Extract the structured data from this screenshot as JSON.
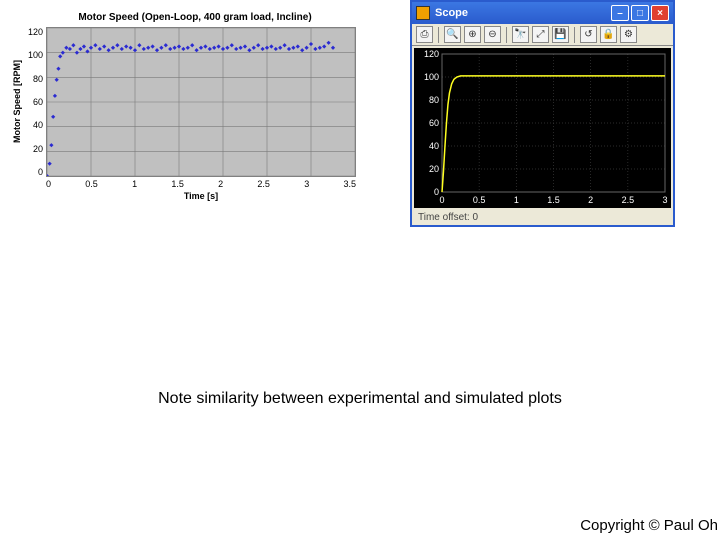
{
  "left_chart": {
    "type": "scatter",
    "title": "Motor Speed (Open-Loop, 400 gram load, Incline)",
    "ylabel": "Motor Speed [RPM]",
    "xlabel": "Time [s]",
    "xlim": [
      0,
      3.5
    ],
    "ylim": [
      0,
      120
    ],
    "xticks": [
      0,
      0.5,
      1,
      1.5,
      2,
      2.5,
      3,
      3.5
    ],
    "yticks": [
      0,
      20,
      40,
      60,
      80,
      100,
      120
    ],
    "marker_color": "#2b2bd1",
    "marker_size": 3,
    "background_color": "#c0c0c0",
    "grid_color": "#7a7a7a",
    "data": [
      [
        0.0,
        0
      ],
      [
        0.03,
        10
      ],
      [
        0.05,
        25
      ],
      [
        0.07,
        48
      ],
      [
        0.09,
        65
      ],
      [
        0.11,
        78
      ],
      [
        0.13,
        87
      ],
      [
        0.15,
        97
      ],
      [
        0.18,
        100
      ],
      [
        0.22,
        104
      ],
      [
        0.26,
        103
      ],
      [
        0.3,
        106
      ],
      [
        0.34,
        100
      ],
      [
        0.38,
        103
      ],
      [
        0.42,
        105
      ],
      [
        0.46,
        101
      ],
      [
        0.5,
        104
      ],
      [
        0.55,
        106
      ],
      [
        0.6,
        103
      ],
      [
        0.65,
        105
      ],
      [
        0.7,
        102
      ],
      [
        0.75,
        104
      ],
      [
        0.8,
        106
      ],
      [
        0.85,
        103
      ],
      [
        0.9,
        105
      ],
      [
        0.95,
        104
      ],
      [
        1.0,
        102
      ],
      [
        1.05,
        106
      ],
      [
        1.1,
        103
      ],
      [
        1.15,
        104
      ],
      [
        1.2,
        105
      ],
      [
        1.25,
        102
      ],
      [
        1.3,
        104
      ],
      [
        1.35,
        106
      ],
      [
        1.4,
        103
      ],
      [
        1.45,
        104
      ],
      [
        1.5,
        105
      ],
      [
        1.55,
        103
      ],
      [
        1.6,
        104
      ],
      [
        1.65,
        106
      ],
      [
        1.7,
        102
      ],
      [
        1.75,
        104
      ],
      [
        1.8,
        105
      ],
      [
        1.85,
        103
      ],
      [
        1.9,
        104
      ],
      [
        1.95,
        105
      ],
      [
        2.0,
        103
      ],
      [
        2.05,
        104
      ],
      [
        2.1,
        106
      ],
      [
        2.15,
        103
      ],
      [
        2.2,
        104
      ],
      [
        2.25,
        105
      ],
      [
        2.3,
        102
      ],
      [
        2.35,
        104
      ],
      [
        2.4,
        106
      ],
      [
        2.45,
        103
      ],
      [
        2.5,
        104
      ],
      [
        2.55,
        105
      ],
      [
        2.6,
        103
      ],
      [
        2.65,
        104
      ],
      [
        2.7,
        106
      ],
      [
        2.75,
        103
      ],
      [
        2.8,
        104
      ],
      [
        2.85,
        105
      ],
      [
        2.9,
        102
      ],
      [
        2.95,
        104
      ],
      [
        3.0,
        107
      ],
      [
        3.05,
        103
      ],
      [
        3.1,
        104
      ],
      [
        3.15,
        105
      ],
      [
        3.2,
        108
      ],
      [
        3.25,
        104
      ]
    ]
  },
  "scope": {
    "window_title": "Scope",
    "toolbar_icons": [
      "print",
      "sep",
      "zoom-in",
      "zoom-x",
      "zoom-y",
      "sep",
      "binoculars",
      "autoscale",
      "save",
      "sep",
      "restore",
      "lock",
      "params"
    ],
    "footer_text": "Time offset: 0",
    "chart": {
      "type": "line",
      "xlim": [
        0,
        3
      ],
      "ylim": [
        0,
        120
      ],
      "xticks": [
        0,
        0.5,
        1,
        1.5,
        2,
        2.5,
        3
      ],
      "yticks": [
        0,
        20,
        40,
        60,
        80,
        100,
        120
      ],
      "background_color": "#000000",
      "grid_color": "#3a3a3a",
      "tick_label_color": "#ffffff",
      "line_color": "#ffff20",
      "line_width": 1.5,
      "data": [
        [
          0,
          0
        ],
        [
          0.02,
          18
        ],
        [
          0.04,
          40
        ],
        [
          0.06,
          60
        ],
        [
          0.08,
          76
        ],
        [
          0.1,
          86
        ],
        [
          0.13,
          94
        ],
        [
          0.16,
          98
        ],
        [
          0.2,
          100
        ],
        [
          0.25,
          101
        ],
        [
          0.3,
          101
        ],
        [
          0.4,
          101
        ],
        [
          0.6,
          101
        ],
        [
          0.9,
          101
        ],
        [
          1.2,
          101
        ],
        [
          1.5,
          101
        ],
        [
          1.8,
          101
        ],
        [
          2.1,
          101
        ],
        [
          2.4,
          101
        ],
        [
          2.7,
          101
        ],
        [
          3.0,
          101
        ]
      ]
    }
  },
  "titlebar_colors": {
    "gradient_top": "#3b77e3",
    "gradient_bottom": "#2a5bcd",
    "close_bg": "#e04030"
  },
  "caption": "Note similarity between experimental and simulated plots",
  "copyright": "Copyright © Paul Oh"
}
